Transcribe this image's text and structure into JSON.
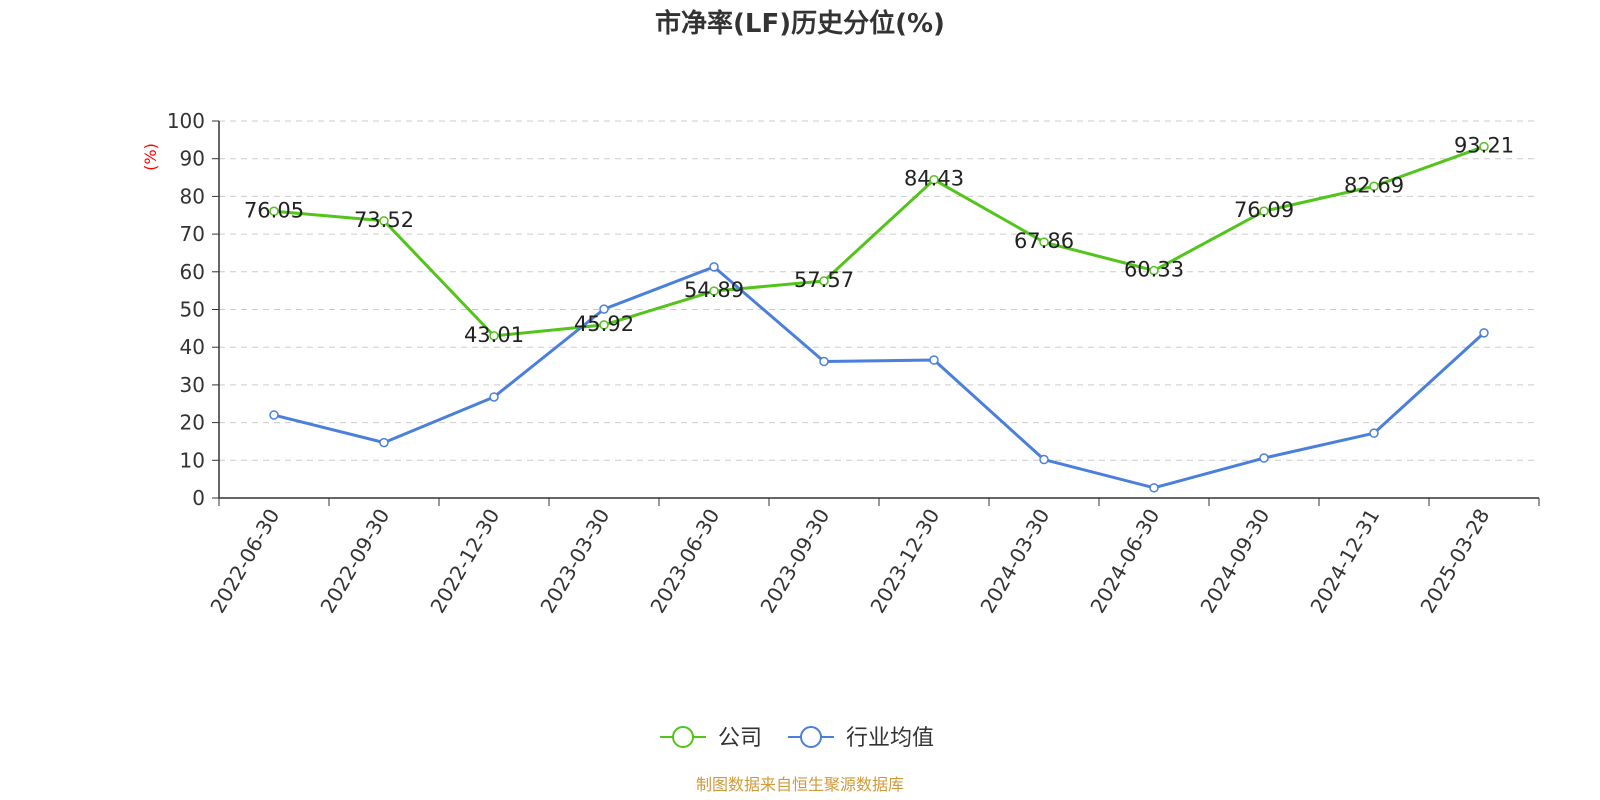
{
  "chart_data": {
    "type": "line",
    "title": "市净率(LF)历史分位(%)",
    "y_unit": "(%)",
    "ylim": [
      0,
      100
    ],
    "y_ticks": [
      "0",
      "10",
      "20",
      "30",
      "40",
      "50",
      "60",
      "70",
      "80",
      "90",
      "100"
    ],
    "grid": true,
    "categories": [
      "2022-06-30",
      "2022-09-30",
      "2022-12-30",
      "2023-03-30",
      "2023-06-30",
      "2023-09-30",
      "2023-12-30",
      "2024-03-30",
      "2024-06-30",
      "2024-09-30",
      "2024-12-31",
      "2025-03-28"
    ],
    "series": [
      {
        "name": "公司",
        "color": "#52c41a",
        "show_labels": true,
        "values": [
          76.05,
          73.52,
          43.01,
          45.92,
          54.89,
          57.57,
          84.43,
          67.86,
          60.33,
          76.09,
          82.69,
          93.21
        ],
        "labels": [
          "76.05",
          "73.52",
          "43.01",
          "45.92",
          "54.89",
          "57.57",
          "84.43",
          "67.86",
          "60.33",
          "76.09",
          "82.69",
          "93.21"
        ]
      },
      {
        "name": "行业均值",
        "color": "#4a7fdc",
        "show_labels": false,
        "values": [
          22.0,
          14.7,
          26.8,
          50.1,
          61.3,
          36.2,
          36.6,
          10.2,
          2.7,
          10.6,
          17.2,
          43.8
        ]
      }
    ],
    "legend_position": "bottom-center"
  },
  "source": "制图数据来自恒生聚源数据库"
}
